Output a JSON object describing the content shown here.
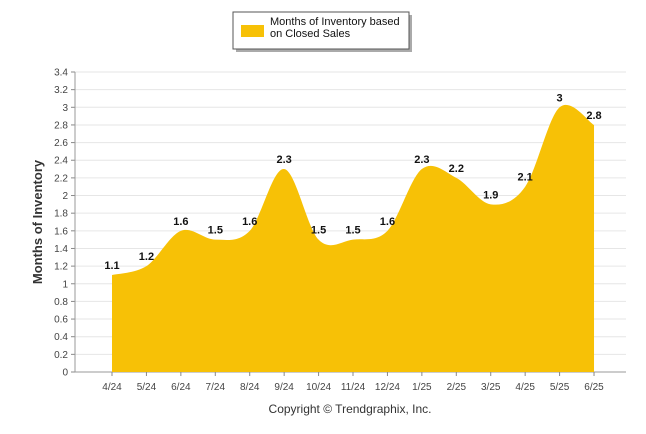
{
  "chart_data": {
    "type": "area",
    "categories": [
      "4/24",
      "5/24",
      "6/24",
      "7/24",
      "8/24",
      "9/24",
      "10/24",
      "11/24",
      "12/24",
      "1/25",
      "2/25",
      "3/25",
      "4/25",
      "5/25",
      "6/25"
    ],
    "series": [
      {
        "name": "Months of Inventory based on Closed Sales",
        "values": [
          1.1,
          1.2,
          1.6,
          1.5,
          1.6,
          2.3,
          1.5,
          1.5,
          1.6,
          2.3,
          2.2,
          1.9,
          2.1,
          3,
          2.8
        ],
        "value_labels": [
          "1.1",
          "1.2",
          "1.6",
          "1.5",
          "1.6",
          "2.3",
          "1.5",
          "1.5",
          "1.6",
          "2.3",
          "2.2",
          "1.9",
          "2.1",
          "3",
          "2.8"
        ],
        "color": "#F7C106"
      }
    ],
    "ylabel": "Months of Inventory",
    "xlabel": "",
    "ylim": [
      0,
      3.4
    ],
    "yticks": [
      "0",
      "0.2",
      "0.4",
      "0.6",
      "0.8",
      "1",
      "1.2",
      "1.4",
      "1.6",
      "1.8",
      "2",
      "2.2",
      "2.4",
      "2.6",
      "2.8",
      "3",
      "3.2",
      "3.4"
    ],
    "grid": true,
    "legend_position": "top-center"
  },
  "legend": {
    "line1": "Months of Inventory based",
    "line2": "on Closed Sales"
  },
  "footer": {
    "copyright": "Copyright © Trendgraphix, Inc."
  }
}
